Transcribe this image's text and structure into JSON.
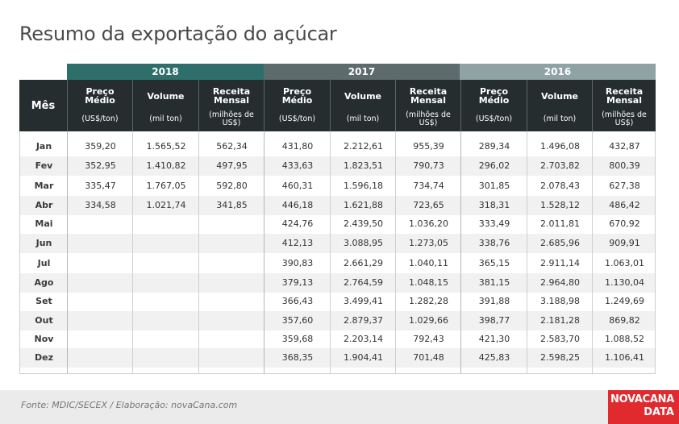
{
  "title": "Resumo da exportação do açúcar",
  "colors": {
    "year_2018": "#2f6f6b",
    "year_2017": "#5d6b6c",
    "year_2016": "#8fa3a5",
    "header_bg": "#262d2f",
    "logo_bg": "#e02a2e"
  },
  "table": {
    "month_header": "Mês",
    "years": [
      "2018",
      "2017",
      "2016"
    ],
    "columns": [
      {
        "label": "Preço Médio",
        "unit": "(US$/ton)"
      },
      {
        "label": "Volume",
        "unit": "(mil ton)"
      },
      {
        "label": "Receita Mensal",
        "unit": "(milhões de US$)"
      }
    ],
    "rows": [
      {
        "mes": "Jan",
        "v": [
          "359,20",
          "1.565,52",
          "562,34",
          "431,80",
          "2.212,61",
          "955,39",
          "289,34",
          "1.496,08",
          "432,87"
        ]
      },
      {
        "mes": "Fev",
        "v": [
          "352,95",
          "1.410,82",
          "497,95",
          "433,63",
          "1.823,51",
          "790,73",
          "296,02",
          "2.703,82",
          "800,39"
        ]
      },
      {
        "mes": "Mar",
        "v": [
          "335,47",
          "1.767,05",
          "592,80",
          "460,31",
          "1.596,18",
          "734,74",
          "301,85",
          "2.078,43",
          "627,38"
        ]
      },
      {
        "mes": "Abr",
        "v": [
          "334,58",
          "1.021,74",
          "341,85",
          "446,18",
          "1.621,88",
          "723,65",
          "318,31",
          "1.528,12",
          "486,42"
        ]
      },
      {
        "mes": "Mai",
        "v": [
          "",
          "",
          "",
          "424,76",
          "2.439,50",
          "1.036,20",
          "333,49",
          "2.011,81",
          "670,92"
        ]
      },
      {
        "mes": "Jun",
        "v": [
          "",
          "",
          "",
          "412,13",
          "3.088,95",
          "1.273,05",
          "338,76",
          "2.685,96",
          "909,91"
        ]
      },
      {
        "mes": "Jul",
        "v": [
          "",
          "",
          "",
          "390,83",
          "2.661,29",
          "1.040,11",
          "365,15",
          "2.911,14",
          "1.063,01"
        ]
      },
      {
        "mes": "Ago",
        "v": [
          "",
          "",
          "",
          "379,13",
          "2.764,59",
          "1.048,15",
          "381,15",
          "2.964,80",
          "1.130,04"
        ]
      },
      {
        "mes": "Set",
        "v": [
          "",
          "",
          "",
          "366,43",
          "3.499,41",
          "1.282,28",
          "391,88",
          "3.188,98",
          "1.249,69"
        ]
      },
      {
        "mes": "Out",
        "v": [
          "",
          "",
          "",
          "357,60",
          "2.879,37",
          "1.029,66",
          "398,77",
          "2.181,28",
          "869,82"
        ]
      },
      {
        "mes": "Nov",
        "v": [
          "",
          "",
          "",
          "359,68",
          "2.203,14",
          "792,43",
          "421,30",
          "2.583,70",
          "1.088,52"
        ]
      },
      {
        "mes": "Dez",
        "v": [
          "",
          "",
          "",
          "368,35",
          "1.904,41",
          "701,48",
          "425,83",
          "2.598,25",
          "1.106,41"
        ]
      }
    ]
  },
  "footer": {
    "source": "Fonte: MDIC/SECEX / Elaboração: novaCana.com",
    "logo_line1": "NOVACANA",
    "logo_line2": "DATA"
  }
}
